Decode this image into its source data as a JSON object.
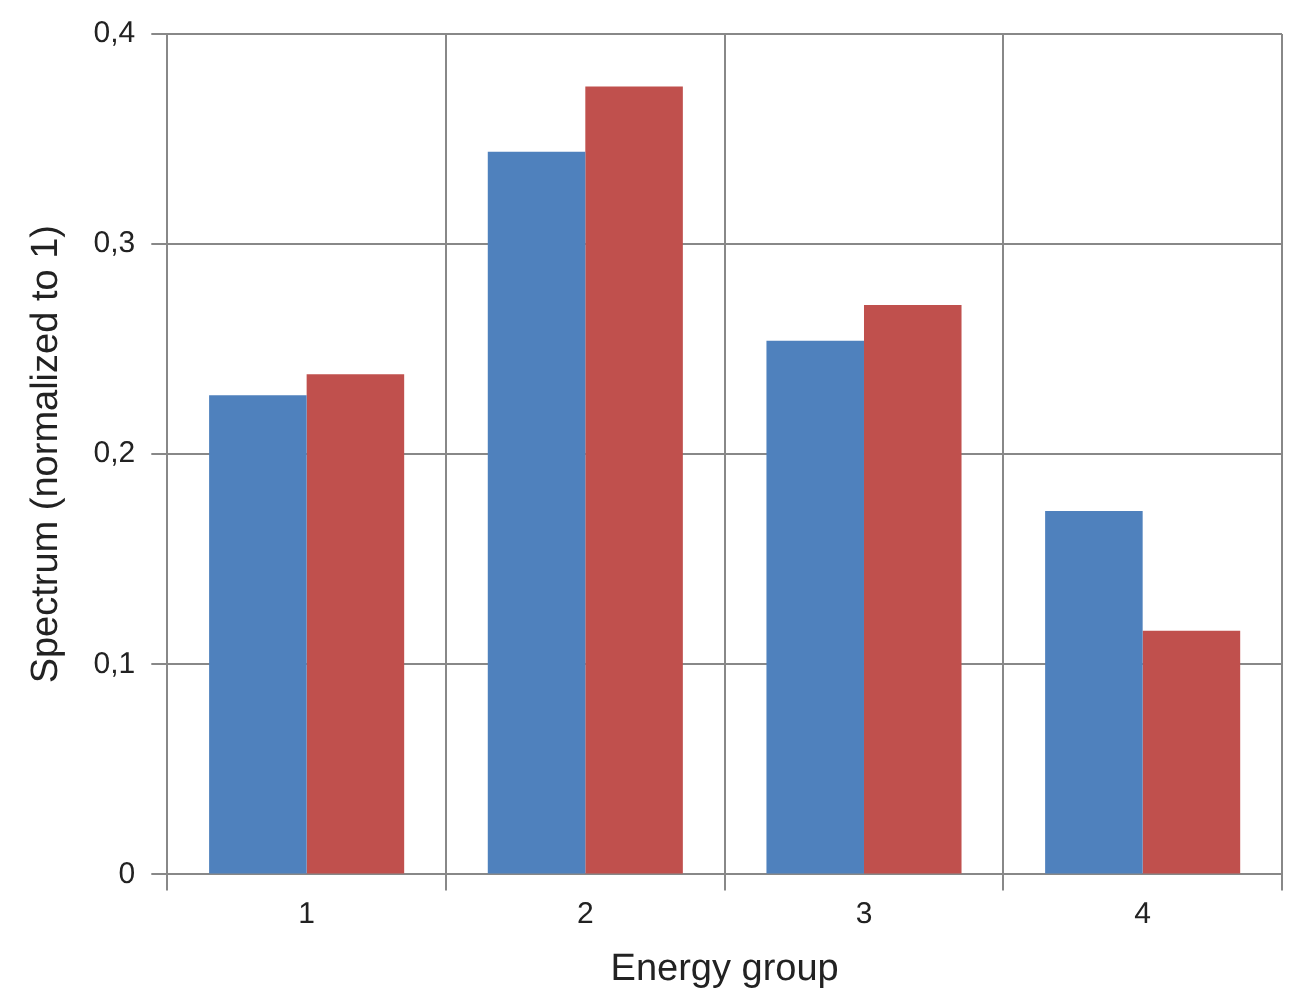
{
  "chart_data": {
    "type": "bar",
    "xlabel": "Energy group",
    "ylabel": "Spectrum (normalized to 1)",
    "categories": [
      "1",
      "2",
      "3",
      "4"
    ],
    "series": [
      {
        "color": "#4f81bd",
        "values": [
          0.228,
          0.344,
          0.254,
          0.173
        ]
      },
      {
        "color": "#c0504d",
        "values": [
          0.238,
          0.375,
          0.271,
          0.116
        ]
      }
    ],
    "ylim": [
      0,
      0.4
    ],
    "yticks": [
      0,
      {
        "value": 0.1,
        "label": "0,1"
      },
      {
        "value": 0.2,
        "label": "0,2"
      },
      {
        "value": 0.3,
        "label": "0,3"
      },
      {
        "value": 0.4,
        "label": "0,4"
      }
    ],
    "grid": true
  }
}
